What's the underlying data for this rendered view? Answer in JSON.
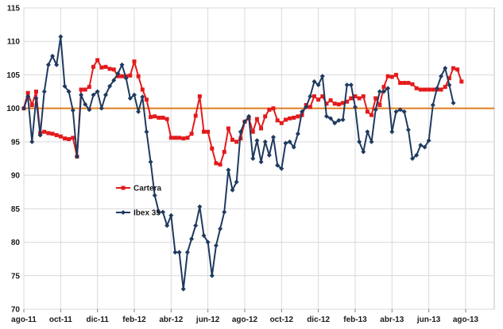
{
  "chart_data": {
    "type": "line",
    "title": "",
    "xlabel": "",
    "ylabel": "",
    "ylim": [
      70,
      115
    ],
    "yticks": [
      70,
      75,
      80,
      85,
      90,
      95,
      100,
      105,
      110,
      115
    ],
    "xlim": [
      0,
      115
    ],
    "xticks": [
      {
        "pos": 0,
        "label": "ago-11"
      },
      {
        "pos": 9,
        "label": "oct-11"
      },
      {
        "pos": 18,
        "label": "dic-11"
      },
      {
        "pos": 27,
        "label": "feb-12"
      },
      {
        "pos": 36,
        "label": "abr-12"
      },
      {
        "pos": 45,
        "label": "jun-12"
      },
      {
        "pos": 54,
        "label": "ago-12"
      },
      {
        "pos": 63,
        "label": "oct-12"
      },
      {
        "pos": 72,
        "label": "dic-12"
      },
      {
        "pos": 81,
        "label": "feb-13"
      },
      {
        "pos": 90,
        "label": "abr-13"
      },
      {
        "pos": 99,
        "label": "jun-13"
      },
      {
        "pos": 108,
        "label": "ago-13"
      }
    ],
    "grid": true,
    "reference_line": {
      "value": 100,
      "color": "#e07b1f"
    },
    "legend_placement": "center-left",
    "series": [
      {
        "name": "Cartera",
        "color": "#e31a1c",
        "marker": "square",
        "values": [
          100.0,
          102.3,
          100.5,
          102.5,
          96.3,
          96.5,
          96.3,
          96.2,
          96.0,
          95.8,
          95.5,
          95.4,
          95.6,
          92.8,
          102.8,
          102.8,
          103.2,
          106.2,
          107.2,
          106.1,
          106.2,
          105.9,
          105.8,
          104.8,
          104.8,
          104.8,
          104.9,
          107.0,
          104.8,
          102.8,
          101.3,
          98.7,
          98.8,
          98.6,
          98.6,
          98.4,
          95.6,
          95.6,
          95.6,
          95.5,
          95.6,
          96.2,
          98.9,
          101.8,
          96.5,
          96.5,
          94.0,
          91.8,
          91.6,
          93.5,
          97.0,
          95.3,
          95.0,
          95.5,
          98.0,
          98.5,
          96.5,
          98.4,
          97.0,
          98.8,
          99.8,
          100.0,
          98.2,
          97.8,
          98.3,
          98.5,
          98.6,
          98.8,
          99.0,
          100.5,
          100.2,
          101.8,
          101.3,
          101.8,
          100.7,
          101.2,
          100.7,
          100.6,
          100.8,
          101.0,
          101.5,
          101.8,
          101.5,
          101.8,
          99.5,
          99.0,
          101.5,
          100.5,
          103.2,
          104.8,
          104.7,
          105.0,
          103.8,
          103.8,
          103.8,
          103.6,
          103.0,
          102.8,
          102.8,
          102.8,
          102.8,
          102.8,
          102.8,
          103.2,
          104.5,
          106.0,
          105.8,
          104.0
        ]
      },
      {
        "name": "Ibex 35",
        "color": "#1f3a5f",
        "marker": "diamond",
        "values": [
          100.0,
          101.8,
          95.0,
          101.5,
          96.0,
          102.5,
          106.5,
          107.8,
          106.5,
          110.7,
          103.3,
          102.5,
          99.7,
          92.8,
          102.0,
          100.6,
          99.8,
          102.0,
          102.5,
          100.0,
          102.0,
          103.3,
          104.2,
          105.2,
          106.5,
          104.5,
          101.5,
          102.0,
          99.5,
          101.7,
          96.5,
          92.0,
          87.0,
          84.5,
          84.5,
          82.5,
          84.0,
          78.5,
          78.5,
          73.0,
          78.5,
          80.5,
          82.5,
          85.3,
          81.0,
          80.0,
          75.0,
          79.5,
          82.0,
          84.5,
          90.8,
          87.8,
          89.0,
          96.5,
          98.0,
          98.8,
          92.5,
          95.2,
          92.0,
          95.0,
          93.0,
          95.7,
          91.5,
          91.0,
          94.8,
          95.0,
          94.2,
          96.2,
          99.5,
          100.2,
          101.8,
          104.0,
          103.5,
          104.8,
          98.8,
          98.5,
          97.8,
          98.2,
          98.3,
          103.5,
          103.5,
          100.2,
          95.0,
          93.5,
          96.5,
          95.0,
          99.8,
          102.5,
          102.5,
          103.0,
          96.5,
          99.5,
          99.8,
          99.5,
          96.8,
          92.5,
          93.0,
          94.5,
          94.2,
          95.2,
          100.5,
          103.0,
          104.8,
          106.0,
          103.5,
          100.8
        ]
      }
    ]
  }
}
